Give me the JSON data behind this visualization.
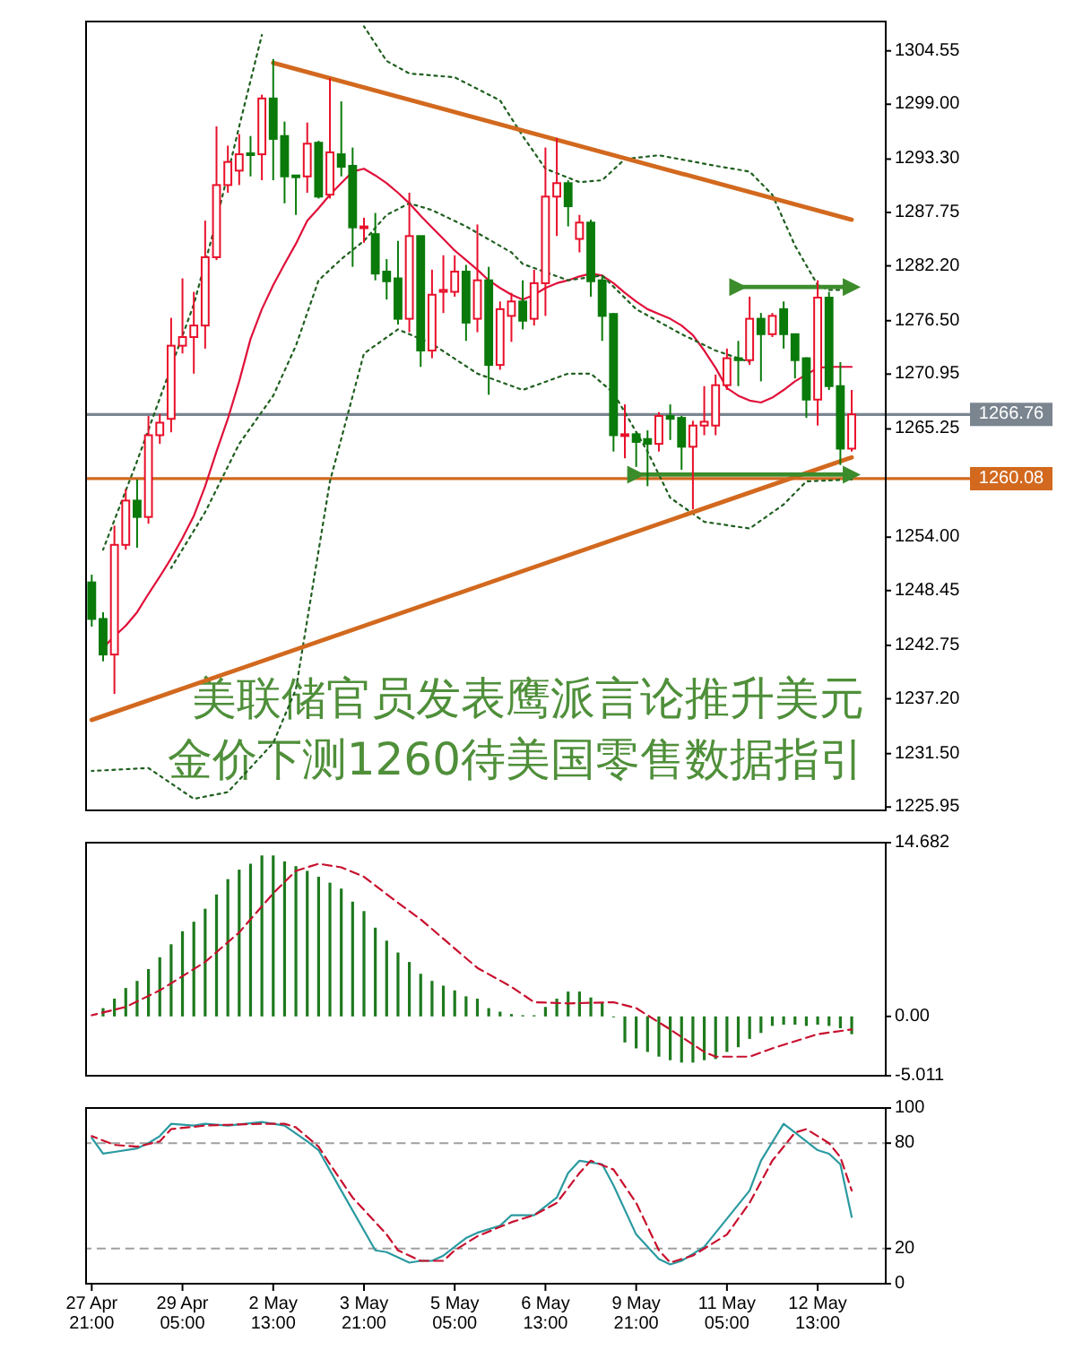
{
  "chart_data": [
    {
      "type": "candlestick",
      "tick_labels": "y",
      "categories": [
        null,
        null,
        null,
        null,
        null,
        null,
        null,
        null,
        null,
        null,
        null,
        null,
        null,
        null,
        null,
        null,
        null,
        null,
        null,
        null,
        null,
        null,
        null,
        null,
        null,
        null,
        null,
        null,
        null,
        null,
        null,
        null,
        null,
        null,
        null,
        null,
        null,
        null,
        null,
        null,
        null,
        null,
        null,
        null,
        null,
        null,
        null,
        null,
        null,
        null,
        null,
        null,
        null,
        null,
        null,
        null,
        null,
        null,
        null,
        null,
        null,
        null,
        null,
        null,
        null,
        null,
        null,
        null
      ],
      "ohlc": [
        [
          1249.3,
          1250.1,
          1244.7,
          1245.5
        ],
        [
          1245.5,
          1246.2,
          1241.1,
          1241.8
        ],
        [
          1241.8,
          1255.2,
          1237.7,
          1253.2
        ],
        [
          1253.2,
          1259.0,
          1252.7,
          1257.8
        ],
        [
          1257.8,
          1260.0,
          1252.9,
          1256.1
        ],
        [
          1256.1,
          1266.6,
          1255.4,
          1264.6
        ],
        [
          1264.6,
          1266.8,
          1263.7,
          1265.9
        ],
        [
          1266.3,
          1276.8,
          1264.9,
          1273.9
        ],
        [
          1273.9,
          1280.9,
          1273.1,
          1274.8
        ],
        [
          1274.8,
          1279.5,
          1271.0,
          1276.0
        ],
        [
          1276.0,
          1286.9,
          1273.6,
          1283.1
        ],
        [
          1283.1,
          1296.7,
          1282.8,
          1290.6
        ],
        [
          1290.6,
          1294.7,
          1289.8,
          1293.0
        ],
        [
          1292.1,
          1295.9,
          1290.6,
          1293.8
        ],
        [
          1293.9,
          1295.7,
          1291.5,
          1293.8
        ],
        [
          1293.8,
          1300.0,
          1291.1,
          1299.6
        ],
        [
          1299.6,
          1303.7,
          1291.1,
          1295.4
        ],
        [
          1295.7,
          1297.2,
          1288.7,
          1291.5
        ],
        [
          1291.6,
          1291.6,
          1287.5,
          1291.5
        ],
        [
          1291.5,
          1297.1,
          1289.8,
          1294.9
        ],
        [
          1295.0,
          1295.2,
          1289.2,
          1289.4
        ],
        [
          1289.6,
          1301.7,
          1289.2,
          1294.0
        ],
        [
          1293.8,
          1299.3,
          1291.5,
          1292.5
        ],
        [
          1292.6,
          1294.5,
          1282.1,
          1286.2
        ],
        [
          1286.2,
          1287.2,
          1284.6,
          1286.3
        ],
        [
          1285.5,
          1287.7,
          1280.7,
          1281.4
        ],
        [
          1281.6,
          1282.9,
          1278.7,
          1280.6
        ],
        [
          1280.9,
          1284.8,
          1276.1,
          1276.7
        ],
        [
          1276.7,
          1289.8,
          1275.3,
          1285.3
        ],
        [
          1285.3,
          1285.3,
          1271.7,
          1273.4
        ],
        [
          1273.4,
          1281.8,
          1272.6,
          1279.2
        ],
        [
          1279.5,
          1283.3,
          1277.3,
          1279.7
        ],
        [
          1279.5,
          1283.3,
          1279.0,
          1281.6
        ],
        [
          1281.6,
          1282.3,
          1274.4,
          1276.3
        ],
        [
          1276.7,
          1286.5,
          1275.3,
          1280.7
        ],
        [
          1280.7,
          1282.1,
          1268.8,
          1271.9
        ],
        [
          1271.9,
          1278.5,
          1271.4,
          1277.7
        ],
        [
          1277.0,
          1279.4,
          1274.3,
          1278.5
        ],
        [
          1278.5,
          1280.7,
          1275.6,
          1276.5
        ],
        [
          1276.7,
          1281.8,
          1276.0,
          1280.4
        ],
        [
          1280.4,
          1294.5,
          1277.0,
          1289.4
        ],
        [
          1289.4,
          1295.5,
          1285.3,
          1290.8
        ],
        [
          1290.8,
          1291.1,
          1286.3,
          1288.4
        ],
        [
          1285.0,
          1287.5,
          1283.6,
          1286.7
        ],
        [
          1286.7,
          1287.0,
          1279.0,
          1280.6
        ],
        [
          1280.7,
          1281.1,
          1274.4,
          1277.0
        ],
        [
          1277.2,
          1277.3,
          1262.9,
          1264.6
        ],
        [
          1264.6,
          1267.8,
          1262.2,
          1264.7
        ],
        [
          1264.7,
          1264.9,
          1261.3,
          1263.9
        ],
        [
          1264.2,
          1265.1,
          1259.3,
          1263.7
        ],
        [
          1263.7,
          1267.0,
          1262.9,
          1266.6
        ],
        [
          1266.6,
          1267.8,
          1264.1,
          1266.3
        ],
        [
          1266.4,
          1266.6,
          1261.0,
          1263.4
        ],
        [
          1263.4,
          1266.1,
          1256.9,
          1265.6
        ],
        [
          1265.6,
          1269.7,
          1264.6,
          1266.0
        ],
        [
          1265.6,
          1270.9,
          1264.6,
          1269.8
        ],
        [
          1269.8,
          1273.6,
          1269.3,
          1272.6
        ],
        [
          1272.6,
          1274.4,
          1269.7,
          1272.4
        ],
        [
          1272.4,
          1279.0,
          1271.9,
          1276.7
        ],
        [
          1276.7,
          1277.3,
          1270.2,
          1275.1
        ],
        [
          1275.1,
          1277.3,
          1274.8,
          1277.0
        ],
        [
          1277.7,
          1278.5,
          1273.6,
          1275.1
        ],
        [
          1275.1,
          1275.1,
          1270.5,
          1272.4
        ],
        [
          1272.6,
          1272.7,
          1266.4,
          1268.3
        ],
        [
          1268.3,
          1280.7,
          1265.6,
          1278.9
        ],
        [
          1278.9,
          1279.5,
          1269.3,
          1269.7
        ],
        [
          1269.7,
          1272.2,
          1261.5,
          1263.2
        ],
        [
          1263.2,
          1269.3,
          1262.9,
          1266.76
        ]
      ],
      "series": [
        {
          "type": "line",
          "color": "#e0103a",
          "values": [
            null,
            1242.5,
            1243.7,
            1244.8,
            1246.2,
            1248.1,
            1249.9,
            1251.8,
            1253.9,
            1256.2,
            1259.3,
            1262.9,
            1266.3,
            1270.2,
            1274.6,
            1277.7,
            1280.2,
            1282.4,
            1284.5,
            1286.9,
            1288.2,
            1289.6,
            1290.8,
            1292.0,
            1292.3,
            1291.6,
            1290.8,
            1289.8,
            1288.7,
            1287.4,
            1286.2,
            1285.0,
            1283.8,
            1282.8,
            1281.8,
            1280.7,
            1279.9,
            1279.2,
            1278.7,
            1279.2,
            1279.9,
            1280.4,
            1280.7,
            1281.1,
            1281.4,
            1281.2,
            1280.4,
            1279.4,
            1278.5,
            1277.7,
            1277.2,
            1276.7,
            1276.0,
            1275.0,
            1273.4,
            1271.6,
            1269.5,
            1268.7,
            1268.2,
            1268.0,
            1268.5,
            1269.3,
            1270.2,
            1270.9,
            1271.6,
            1271.7,
            1271.7,
            1271.7
          ]
        },
        {
          "type": "line",
          "color": "#1f5f1f",
          "line_style": "dotted",
          "values": [
            null,
            1252.7,
            null,
            null,
            1261.9,
            null,
            null,
            null,
            null,
            1278.2,
            null,
            1286.9,
            null,
            1296.7,
            null,
            1306.2,
            null,
            null,
            null,
            null,
            null,
            null,
            null,
            null,
            null,
            null,
            null,
            null,
            null,
            null,
            null,
            null,
            null,
            null,
            null,
            null,
            null,
            null,
            null,
            null,
            null,
            null,
            null,
            null,
            null,
            null,
            null,
            null,
            null,
            null,
            null,
            null,
            null,
            null,
            null,
            null,
            null,
            null,
            null,
            null,
            null,
            null,
            null,
            null,
            null,
            null,
            null,
            null
          ]
        },
        {
          "type": "line",
          "color": "#1f5f1f",
          "line_style": "dotted",
          "values": [
            null,
            null,
            null,
            null,
            null,
            null,
            null,
            null,
            null,
            null,
            null,
            null,
            null,
            null,
            null,
            null,
            null,
            null,
            null,
            null,
            null,
            null,
            null,
            null,
            1307.1,
            null,
            1303.5,
            null,
            1302.2,
            null,
            null,
            null,
            1301.8,
            null,
            null,
            null,
            1299.4,
            null,
            1295.7,
            null,
            1292.3,
            null,
            null,
            1290.9,
            null,
            1291.1,
            null,
            1293.3,
            null,
            null,
            1293.7,
            null,
            null,
            null,
            null,
            1292.6,
            null,
            null,
            1292.0,
            null,
            1289.6,
            null,
            1284.3,
            null,
            1280.2,
            1279.7,
            null,
            1279.7
          ]
        },
        {
          "type": "line",
          "color": "#1f5f1f",
          "line_style": "dotted",
          "values": [
            null,
            null,
            null,
            null,
            null,
            null,
            null,
            1250.8,
            null,
            null,
            1256.6,
            null,
            null,
            1263.7,
            null,
            null,
            1268.7,
            null,
            1273.9,
            null,
            1280.7,
            null,
            1282.9,
            null,
            1284.8,
            null,
            1287.5,
            null,
            1288.7,
            null,
            1288.0,
            null,
            null,
            1286.3,
            null,
            null,
            null,
            1283.6,
            1282.4,
            null,
            null,
            null,
            1280.7,
            null,
            null,
            1281.2,
            null,
            null,
            1277.7,
            null,
            null,
            null,
            1275.1,
            null,
            null,
            1273.4,
            null,
            null,
            1272.2,
            null,
            null,
            null,
            null,
            null,
            null,
            null,
            null,
            null
          ]
        },
        {
          "type": "line",
          "color": "#1f5f1f",
          "line_style": "dotted",
          "values": [
            1229.7,
            null,
            null,
            null,
            null,
            1230.0,
            null,
            null,
            null,
            1226.8,
            null,
            null,
            1227.5,
            null,
            null,
            null,
            1232.6,
            null,
            1238.2,
            null,
            null,
            1259.8,
            null,
            null,
            1273.1,
            null,
            null,
            1275.6,
            null,
            null,
            1274.1,
            null,
            null,
            null,
            1271.0,
            null,
            null,
            null,
            1269.3,
            null,
            null,
            null,
            1271.0,
            null,
            1271.0,
            null,
            1269.0,
            null,
            null,
            1262.9,
            null,
            1258.1,
            null,
            null,
            1255.6,
            null,
            null,
            null,
            1254.9,
            null,
            null,
            1257.4,
            null,
            1259.8,
            null,
            null,
            null,
            1260.0
          ]
        },
        {
          "type": "line",
          "color": "#d2691e",
          "values": [
            null,
            null,
            null,
            null,
            null,
            null,
            null,
            null,
            null,
            null,
            null,
            null,
            null,
            null,
            null,
            null,
            1303.3,
            null,
            null,
            null,
            null,
            null,
            null,
            null,
            null,
            null,
            null,
            null,
            null,
            null,
            null,
            null,
            null,
            null,
            null,
            null,
            null,
            null,
            null,
            null,
            null,
            null,
            null,
            null,
            null,
            null,
            null,
            null,
            null,
            null,
            null,
            null,
            null,
            null,
            null,
            null,
            null,
            null,
            null,
            null,
            null,
            null,
            null,
            null,
            null,
            null,
            null,
            1287.0
          ]
        },
        {
          "type": "line",
          "color": "#d2691e",
          "values": [
            1235.0,
            null,
            null,
            null,
            null,
            null,
            null,
            null,
            null,
            null,
            null,
            null,
            null,
            null,
            null,
            null,
            null,
            null,
            null,
            null,
            null,
            null,
            null,
            null,
            null,
            null,
            null,
            null,
            null,
            null,
            null,
            null,
            null,
            null,
            null,
            null,
            null,
            null,
            null,
            null,
            null,
            null,
            null,
            null,
            null,
            null,
            null,
            null,
            null,
            null,
            null,
            null,
            null,
            null,
            null,
            null,
            null,
            null,
            null,
            null,
            null,
            null,
            null,
            null,
            null,
            null,
            null,
            1262.3
          ]
        },
        {
          "type": "line",
          "color": "#3c8c2c",
          "marker": "triangle",
          "values": [
            null,
            null,
            null,
            null,
            null,
            null,
            null,
            null,
            null,
            null,
            null,
            null,
            null,
            null,
            null,
            null,
            null,
            null,
            null,
            null,
            null,
            null,
            null,
            null,
            null,
            null,
            null,
            null,
            null,
            null,
            null,
            null,
            null,
            null,
            null,
            null,
            null,
            null,
            null,
            null,
            null,
            null,
            null,
            null,
            null,
            null,
            null,
            null,
            null,
            null,
            null,
            null,
            null,
            null,
            null,
            null,
            null,
            1280.0,
            null,
            null,
            null,
            null,
            null,
            null,
            null,
            null,
            null,
            1280.0
          ]
        },
        {
          "type": "line",
          "color": "#3c8c2c",
          "marker": "triangle",
          "values": [
            null,
            null,
            null,
            null,
            null,
            null,
            null,
            null,
            null,
            null,
            null,
            null,
            null,
            null,
            null,
            null,
            null,
            null,
            null,
            null,
            null,
            null,
            null,
            null,
            null,
            null,
            null,
            null,
            null,
            null,
            null,
            null,
            null,
            null,
            null,
            null,
            null,
            null,
            null,
            null,
            null,
            null,
            null,
            null,
            null,
            null,
            null,
            null,
            1260.5,
            null,
            null,
            null,
            null,
            null,
            null,
            null,
            null,
            null,
            null,
            null,
            null,
            null,
            null,
            null,
            null,
            null,
            null,
            1260.5
          ]
        }
      ],
      "ylim": [
        1225.6,
        1307.6
      ],
      "yticks": [
        1304.55,
        {
          "value": 1299,
          "label": "1299.00"
        },
        {
          "value": 1293.3,
          "label": "1293.30"
        },
        1287.75,
        {
          "value": 1282.2,
          "label": "1282.20"
        },
        {
          "value": 1276.5,
          "label": "1276.50"
        },
        1270.95,
        1265.25,
        {
          "value": 1254,
          "label": "1254.00"
        },
        1248.45,
        1242.75,
        {
          "value": 1237.2,
          "label": "1237.20"
        },
        {
          "value": 1231.5,
          "label": "1231.50"
        },
        1225.95
      ],
      "ref_lines": [
        {
          "axis": "y",
          "value": 1266.76,
          "label": "1266.76",
          "color": "#7a8590"
        },
        {
          "axis": "y",
          "value": 1260.08,
          "label": "1260.08",
          "color": "#d2691e"
        }
      ],
      "annotations": [
        "美联储官员发表鹰派言论推升美元",
        "金价下测1260待美国零售数据指引"
      ]
    },
    {
      "type": "bar",
      "tick_labels": "y",
      "categories": [
        null,
        null,
        null,
        null,
        null,
        null,
        null,
        null,
        null,
        null,
        null,
        null,
        null,
        null,
        null,
        null,
        null,
        null,
        null,
        null,
        null,
        null,
        null,
        null,
        null,
        null,
        null,
        null,
        null,
        null,
        null,
        null,
        null,
        null,
        null,
        null,
        null,
        null,
        null,
        null,
        null,
        null,
        null,
        null,
        null,
        null,
        null,
        null,
        null,
        null,
        null,
        null,
        null,
        null,
        null,
        null,
        null,
        null,
        null,
        null,
        null,
        null,
        null,
        null,
        null,
        null,
        null,
        null
      ],
      "series": [
        {
          "color": "#1e7a1e",
          "values": [
            null,
            0.7,
            1.5,
            2.4,
            3.0,
            4.0,
            5.0,
            6.1,
            7.2,
            8.0,
            9.1,
            10.3,
            11.6,
            12.4,
            12.9,
            13.6,
            13.6,
            13.1,
            12.7,
            12.3,
            11.8,
            11.3,
            10.8,
            9.7,
            8.9,
            7.5,
            6.4,
            5.4,
            4.6,
            3.6,
            3.0,
            2.6,
            2.2,
            1.7,
            1.5,
            0.7,
            0.4,
            0.2,
            0.1,
            0.1,
            0.8,
            1.5,
            2.1,
            2.1,
            1.6,
            1.2,
            0,
            -2.2,
            -2.7,
            -3.0,
            -3.4,
            -3.7,
            -3.9,
            -3.9,
            -3.7,
            -3.6,
            -3.0,
            -2.6,
            -1.9,
            -1.4,
            -0.8,
            -0.7,
            -0.7,
            -0.8,
            -0.7,
            -0.8,
            -1.0,
            -1.5
          ]
        },
        {
          "type": "line",
          "color": "#c8102e",
          "line_style": "dashed",
          "values": [
            0.1,
            null,
            null,
            0.8,
            null,
            null,
            2.2,
            null,
            null,
            null,
            4.6,
            null,
            null,
            7.1,
            null,
            null,
            10.4,
            null,
            12.3,
            null,
            12.9,
            null,
            12.6,
            null,
            11.8,
            null,
            null,
            9.6,
            null,
            8.2,
            null,
            null,
            null,
            null,
            4.1,
            null,
            null,
            2.5,
            null,
            1.2,
            null,
            null,
            1.1,
            null,
            null,
            null,
            1.2,
            null,
            0.7,
            null,
            null,
            -1.1,
            null,
            null,
            -3.0,
            -3.4,
            null,
            null,
            -3.4,
            null,
            -2.7,
            null,
            null,
            null,
            -1.5,
            null,
            null,
            -1.1
          ]
        }
      ],
      "ylim": [
        -5.011,
        14.682
      ],
      "yticks": [
        14.682,
        {
          "value": 0,
          "label": "0.00"
        },
        -5.011
      ]
    },
    {
      "type": "line",
      "categories": [
        "27 Apr 21:00",
        null,
        null,
        null,
        null,
        null,
        null,
        null,
        "29 Apr 05:00",
        null,
        null,
        null,
        null,
        null,
        null,
        null,
        "2 May 13:00",
        null,
        null,
        null,
        null,
        null,
        null,
        null,
        "3 May 21:00",
        null,
        null,
        null,
        null,
        null,
        null,
        null,
        "5 May 05:00",
        null,
        null,
        null,
        null,
        null,
        null,
        null,
        "6 May 13:00",
        null,
        null,
        null,
        null,
        null,
        null,
        null,
        "9 May 21:00",
        null,
        null,
        null,
        null,
        null,
        null,
        null,
        "11 May 05:00",
        null,
        null,
        null,
        null,
        null,
        null,
        null,
        "12 May 13:00",
        null,
        null,
        null
      ],
      "series": [
        {
          "color": "#2a9aa0",
          "values": [
            83,
            74,
            75,
            null,
            77,
            80,
            84,
            91,
            null,
            90,
            91,
            null,
            90,
            null,
            null,
            92,
            null,
            90,
            null,
            81,
            76,
            null,
            53,
            null,
            null,
            19,
            18,
            null,
            12,
            13,
            13,
            16,
            null,
            26,
            29,
            null,
            33,
            39,
            null,
            39,
            null,
            49,
            63,
            70,
            null,
            68,
            56,
            null,
            28,
            null,
            14,
            11,
            13,
            null,
            21,
            null,
            null,
            null,
            53,
            70,
            null,
            91,
            86,
            null,
            76,
            74,
            68,
            38
          ]
        },
        {
          "color": "#c8102e",
          "line_style": "dashed",
          "values": [
            84,
            null,
            79,
            null,
            78,
            null,
            81,
            88,
            null,
            null,
            90,
            null,
            null,
            null,
            null,
            91,
            null,
            91,
            89,
            null,
            78,
            68,
            null,
            49,
            null,
            null,
            28,
            19,
            null,
            13,
            null,
            13,
            19,
            null,
            27,
            null,
            null,
            35,
            null,
            39,
            null,
            46,
            null,
            63,
            70,
            null,
            65,
            null,
            46,
            null,
            19,
            12,
            null,
            16,
            null,
            null,
            28,
            null,
            46,
            null,
            70,
            null,
            86,
            88,
            null,
            80,
            72,
            53
          ]
        }
      ],
      "ylim": [
        0,
        100
      ],
      "yticks": [
        100,
        80,
        20,
        0
      ],
      "ref_lines": [
        {
          "axis": "y",
          "value": 80,
          "color": "#a0a0a0",
          "line_style": "dashed"
        },
        {
          "axis": "y",
          "value": 20,
          "color": "#a0a0a0",
          "line_style": "dashed"
        }
      ]
    }
  ]
}
